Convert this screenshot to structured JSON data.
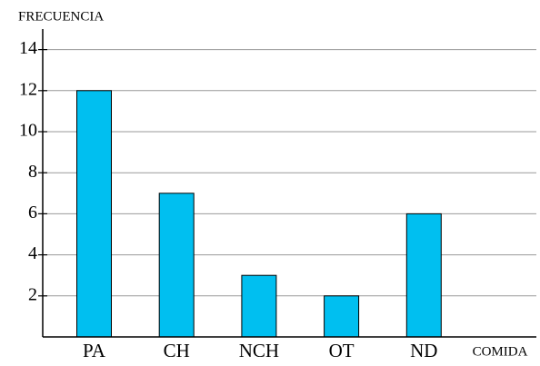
{
  "chart_data": {
    "type": "bar",
    "x_label": "COMIDA",
    "y_label": "FRECUENCIA",
    "categories": [
      "PA",
      "CH",
      "NCH",
      "OT",
      "ND"
    ],
    "values": [
      12,
      7,
      3,
      2,
      6
    ],
    "color": "#00bff0",
    "ylim": [
      0,
      15
    ],
    "yticks": [
      2,
      4,
      6,
      8,
      10,
      12,
      14
    ],
    "grid": true
  }
}
